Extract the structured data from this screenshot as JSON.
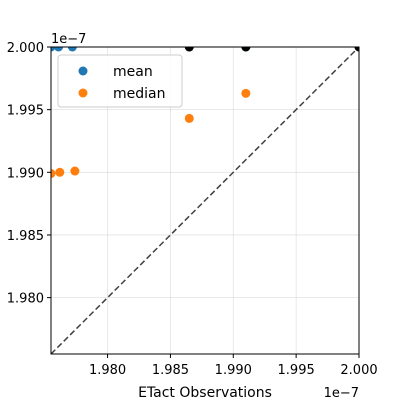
{
  "chart_data": {
    "type": "scatter",
    "xlabel": "ETact Observations",
    "ylabel": "",
    "x_offset_label": "1e−7",
    "y_offset_label": "1e−7",
    "xlim": [
      1.9755e-07,
      2e-07
    ],
    "ylim": [
      1.9755e-07,
      2e-07
    ],
    "x_ticks": [
      1.98e-07,
      1.985e-07,
      1.99e-07,
      1.995e-07,
      2e-07
    ],
    "x_tick_labels": [
      "1.980",
      "1.985",
      "1.990",
      "1.995",
      "2.000"
    ],
    "y_ticks": [
      1.98e-07,
      1.985e-07,
      1.99e-07,
      1.995e-07,
      2e-07
    ],
    "y_tick_labels": [
      "1.980",
      "1.985",
      "1.990",
      "1.995",
      "2.000"
    ],
    "grid": true,
    "identity_line": true,
    "legend_position": "upper-left",
    "colors": {
      "mean": "#1f77b4",
      "median": "#ff7f0e",
      "highlight": "#000000",
      "identity": "#404040"
    },
    "series": [
      {
        "name": "mean",
        "points": [
          {
            "x": 1.9755e-07,
            "y": 2e-07
          },
          {
            "x": 1.9761e-07,
            "y": 2e-07
          },
          {
            "x": 1.9772e-07,
            "y": 2e-07
          },
          {
            "x": 1.9865e-07,
            "y": 2e-07
          },
          {
            "x": 1.991e-07,
            "y": 2e-07
          },
          {
            "x": 2e-07,
            "y": 2e-07
          }
        ]
      },
      {
        "name": "median",
        "points": [
          {
            "x": 1.9755e-07,
            "y": 1.9899e-07
          },
          {
            "x": 1.9762e-07,
            "y": 1.99e-07
          },
          {
            "x": 1.9774e-07,
            "y": 1.9901e-07
          },
          {
            "x": 1.9865e-07,
            "y": 1.9943e-07
          },
          {
            "x": 1.991e-07,
            "y": 1.9963e-07
          }
        ]
      },
      {
        "name": "",
        "points": [
          {
            "x": 1.9865e-07,
            "y": 2e-07
          },
          {
            "x": 1.991e-07,
            "y": 2e-07
          },
          {
            "x": 2e-07,
            "y": 2e-07
          }
        ]
      }
    ]
  }
}
